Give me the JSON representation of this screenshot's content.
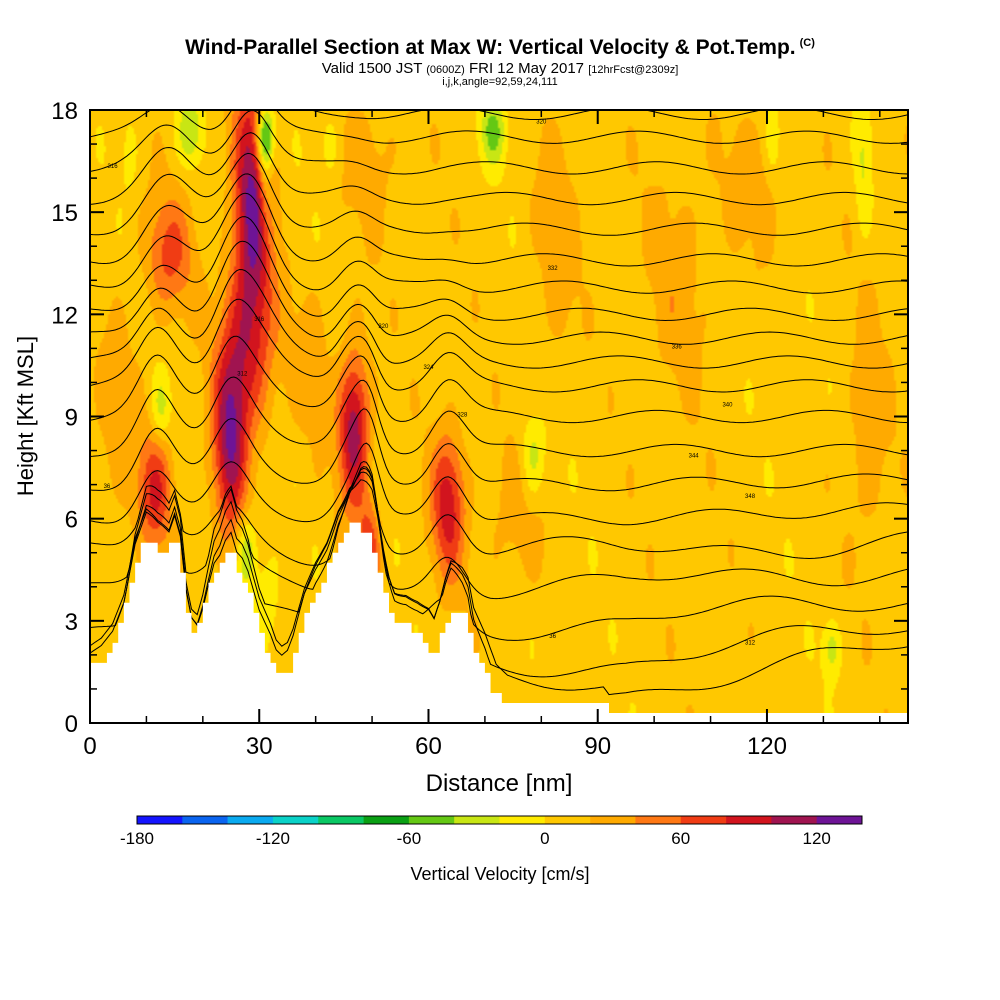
{
  "header": {
    "title": "Wind-Parallel Section at Max W: Vertical Velocity & Pot.Temp.",
    "title_mark": "(C)",
    "valid_prefix": "Valid 1500 JST",
    "valid_utc": "(0600Z)",
    "valid_date": "FRI 12 May 2017",
    "forecast_tag": "[12hrFcst@2309z]",
    "indices": "i,j,k,angle=92,59,24,111"
  },
  "chart_data": {
    "type": "heatmap",
    "xlabel": "Distance [nm]",
    "ylabel": "Height [Kft MSL]",
    "xlim": [
      0,
      145
    ],
    "ylim": [
      0,
      18
    ],
    "x_ticks": [
      0,
      30,
      60,
      90,
      120
    ],
    "y_ticks": [
      0,
      3,
      6,
      9,
      12,
      15,
      18
    ],
    "colorbar": {
      "label": "Vertical Velocity [cm/s]",
      "min": -180,
      "max": 140,
      "step": 20,
      "tick_labels": [
        -180,
        -120,
        -60,
        0,
        60,
        120
      ],
      "colors": [
        "#1414ff",
        "#0a64f0",
        "#0aaaf0",
        "#0ad2c8",
        "#0ac864",
        "#0aa014",
        "#64c814",
        "#c8e614",
        "#ffeb00",
        "#ffc800",
        "#ffaa00",
        "#ff7814",
        "#f03c14",
        "#d2141e",
        "#a01450",
        "#6e1496"
      ]
    },
    "terrain": [
      [
        0,
        1.6
      ],
      [
        2,
        1.8
      ],
      [
        4,
        2.2
      ],
      [
        6,
        3.0
      ],
      [
        8,
        4.6
      ],
      [
        10,
        5.4
      ],
      [
        12,
        5.1
      ],
      [
        14,
        5.0
      ],
      [
        15,
        5.6
      ],
      [
        16,
        5.1
      ],
      [
        17,
        3.6
      ],
      [
        18,
        2.8
      ],
      [
        19,
        2.6
      ],
      [
        20,
        3.1
      ],
      [
        21,
        3.8
      ],
      [
        22,
        4.4
      ],
      [
        23,
        4.6
      ],
      [
        24,
        5.0
      ],
      [
        25,
        5.2
      ],
      [
        26,
        4.6
      ],
      [
        27,
        4.4
      ],
      [
        28,
        4.0
      ],
      [
        29,
        3.4
      ],
      [
        30,
        2.8
      ],
      [
        31,
        2.4
      ],
      [
        32,
        2.0
      ],
      [
        33,
        1.5
      ],
      [
        34,
        1.3
      ],
      [
        35,
        1.4
      ],
      [
        36,
        1.8
      ],
      [
        37,
        2.4
      ],
      [
        38,
        3.0
      ],
      [
        40,
        3.8
      ],
      [
        42,
        4.4
      ],
      [
        44,
        5.3
      ],
      [
        46,
        5.8
      ],
      [
        48,
        5.8
      ],
      [
        50,
        5.4
      ],
      [
        51,
        4.8
      ],
      [
        52,
        4.0
      ],
      [
        53,
        3.4
      ],
      [
        54,
        3.0
      ],
      [
        56,
        2.9
      ],
      [
        58,
        2.6
      ],
      [
        60,
        2.2
      ],
      [
        61,
        1.8
      ],
      [
        62,
        2.2
      ],
      [
        63,
        2.8
      ],
      [
        64,
        3.3
      ],
      [
        66,
        3.2
      ],
      [
        67,
        3.0
      ],
      [
        68,
        2.2
      ],
      [
        70,
        1.6
      ],
      [
        71,
        1.2
      ],
      [
        72,
        0.8
      ],
      [
        74,
        0.6
      ],
      [
        80,
        0.6
      ],
      [
        91,
        0.6
      ],
      [
        92,
        0.35
      ],
      [
        95,
        0.35
      ],
      [
        145,
        0.35
      ]
    ],
    "updrafts": [
      {
        "x": 28.8,
        "y": 15.3,
        "sx": 2.3,
        "sy": 2.6,
        "w": 115
      },
      {
        "x": 28.2,
        "y": 11.0,
        "sx": 3.5,
        "sy": 1.8,
        "w": 55
      },
      {
        "x": 24.8,
        "y": 8.3,
        "sx": 2.1,
        "sy": 2.0,
        "w": 100
      },
      {
        "x": 46.8,
        "y": 8.6,
        "sx": 1.9,
        "sy": 1.6,
        "w": 105
      },
      {
        "x": 63.5,
        "y": 6.4,
        "sx": 2.1,
        "sy": 1.5,
        "w": 80
      },
      {
        "x": 11.6,
        "y": 6.8,
        "sx": 2.1,
        "sy": 1.2,
        "w": 70
      },
      {
        "x": 14.0,
        "y": 13.8,
        "sx": 3.0,
        "sy": 1.2,
        "w": 55
      },
      {
        "x": 49.5,
        "y": 5.0,
        "sx": 1.3,
        "sy": 1.0,
        "w": 65
      },
      {
        "x": 5.0,
        "y": 9.0,
        "sx": 3.0,
        "sy": 2.0,
        "w": 20
      },
      {
        "x": 39.0,
        "y": 10.5,
        "sx": 2.5,
        "sy": 1.5,
        "w": 20
      },
      {
        "x": 50.0,
        "y": 16.5,
        "sx": 3.5,
        "sy": 1.5,
        "w": 20
      },
      {
        "x": 75.0,
        "y": 6.0,
        "sx": 3.5,
        "sy": 1.5,
        "w": 20
      },
      {
        "x": 83.0,
        "y": 14.5,
        "sx": 3.0,
        "sy": 2.5,
        "w": 20
      },
      {
        "x": 104.0,
        "y": 13.0,
        "sx": 4.0,
        "sy": 2.5,
        "w": 20
      },
      {
        "x": 118.0,
        "y": 16.0,
        "sx": 4.0,
        "sy": 1.5,
        "w": 20
      },
      {
        "x": 138.0,
        "y": 8.5,
        "sx": 2.5,
        "sy": 2.5,
        "w": 25
      }
    ],
    "downdrafts": [
      {
        "x": 31.0,
        "y": 17.2,
        "sx": 1.2,
        "sy": 0.7,
        "w": -110
      },
      {
        "x": 31.0,
        "y": 15.7,
        "sx": 0.9,
        "sy": 1.0,
        "w": -40
      },
      {
        "x": 17.8,
        "y": 17.4,
        "sx": 1.5,
        "sy": 0.7,
        "w": -45
      },
      {
        "x": 71.5,
        "y": 17.4,
        "sx": 1.6,
        "sy": 0.7,
        "w": -55
      },
      {
        "x": 78.5,
        "y": 7.8,
        "sx": 1.5,
        "sy": 0.9,
        "w": -40
      },
      {
        "x": 27.8,
        "y": 5.0,
        "sx": 1.3,
        "sy": 0.8,
        "w": -55
      },
      {
        "x": 31.5,
        "y": 3.5,
        "sx": 1.5,
        "sy": 1.0,
        "w": -30
      },
      {
        "x": 12.5,
        "y": 9.2,
        "sx": 1.2,
        "sy": 0.7,
        "w": -35
      },
      {
        "x": 131.5,
        "y": 2.2,
        "sx": 1.1,
        "sy": 0.6,
        "w": -40
      },
      {
        "x": 137.0,
        "y": 16.5,
        "sx": 1.0,
        "sy": 1.5,
        "w": -30
      },
      {
        "x": 121.0,
        "y": 17.2,
        "sx": 1.0,
        "sy": 0.8,
        "w": -25
      },
      {
        "x": 42.5,
        "y": 17.0,
        "sx": 1.0,
        "sy": 0.6,
        "w": -25
      },
      {
        "x": 7.0,
        "y": 16.8,
        "sx": 1.0,
        "sy": 0.8,
        "w": -20
      }
    ],
    "isentrope_levels_kft": [
      0.8,
      1.8,
      2.9,
      4.0,
      5.0,
      6.0,
      7.0,
      8.0,
      9.0,
      9.9,
      10.6,
      11.3,
      12.0,
      12.8,
      13.6,
      14.5,
      15.4,
      16.3,
      17.2,
      17.9
    ],
    "isentrope_labels": [
      "36",
      "312",
      "316",
      "320",
      "324",
      "328",
      "332",
      "336",
      "340",
      "344",
      "348"
    ]
  },
  "colors": {
    "contour": "#000000",
    "terrain": "#ffffff",
    "frame": "#000000"
  }
}
